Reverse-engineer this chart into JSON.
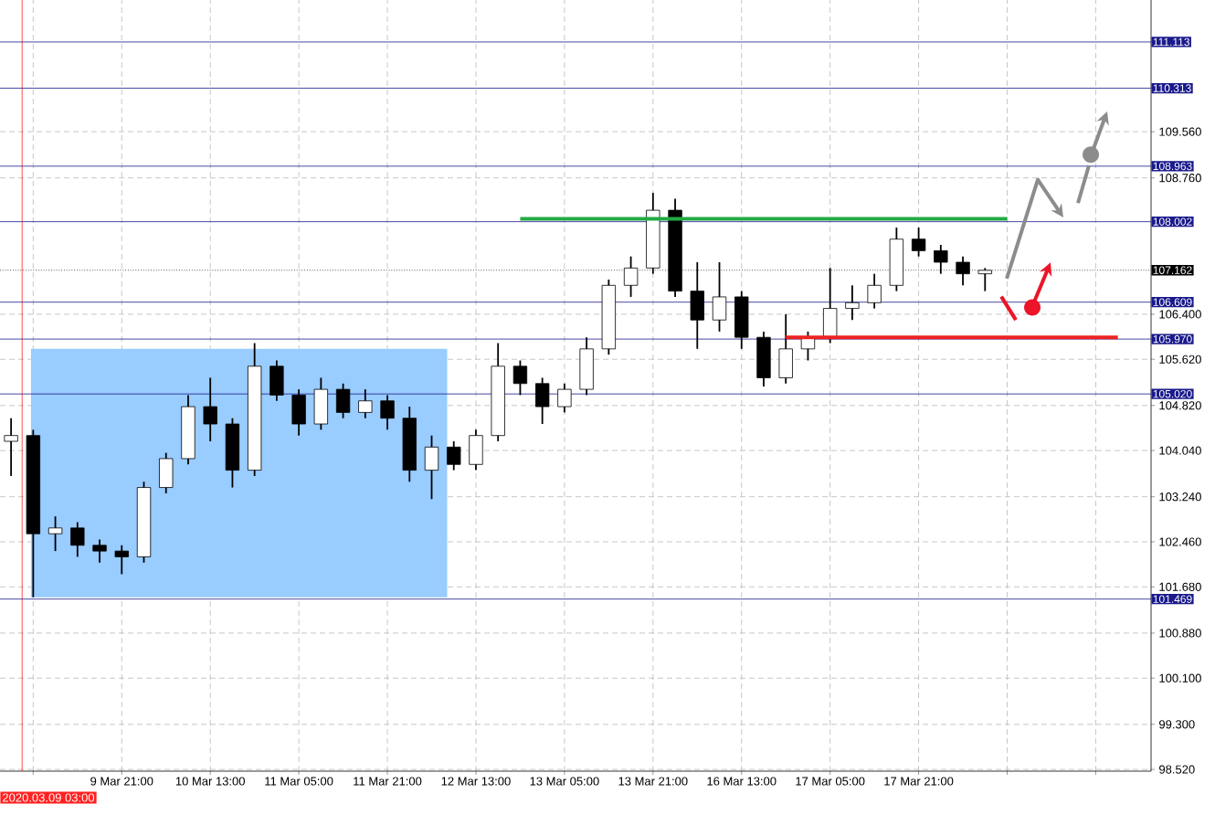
{
  "chart_data": {
    "type": "candlestick",
    "categories": [
      null,
      null,
      null,
      null,
      null,
      "9 Mar 21:00",
      null,
      null,
      null,
      "10 Mar 13:00",
      null,
      null,
      null,
      "11 Mar 05:00",
      null,
      null,
      null,
      "11 Mar 21:00",
      null,
      null,
      null,
      "12 Mar 13:00",
      null,
      null,
      null,
      "13 Mar 05:00",
      null,
      null,
      null,
      "13 Mar 21:00",
      null,
      null,
      null,
      "16 Mar 13:00",
      null,
      null,
      null,
      "17 Mar 05:00",
      null,
      null,
      null,
      "17 Mar 21:00",
      null,
      null,
      null,
      null,
      null,
      null,
      null,
      null,
      null,
      null
    ],
    "ohlc": [
      [
        104.2,
        104.6,
        103.6,
        104.3
      ],
      [
        104.3,
        104.4,
        101.5,
        102.6
      ],
      [
        102.6,
        102.9,
        102.3,
        102.7
      ],
      [
        102.7,
        102.8,
        102.2,
        102.4
      ],
      [
        102.4,
        102.5,
        102.1,
        102.3
      ],
      [
        102.3,
        102.4,
        101.9,
        102.2
      ],
      [
        102.2,
        103.5,
        102.1,
        103.4
      ],
      [
        103.4,
        104.0,
        103.3,
        103.9
      ],
      [
        103.9,
        105.0,
        103.8,
        104.8
      ],
      [
        104.8,
        105.3,
        104.2,
        104.5
      ],
      [
        104.5,
        104.6,
        103.4,
        103.7
      ],
      [
        103.7,
        105.9,
        103.6,
        105.5
      ],
      [
        105.5,
        105.6,
        104.9,
        105.0
      ],
      [
        105.0,
        105.1,
        104.3,
        104.5
      ],
      [
        104.5,
        105.3,
        104.4,
        105.1
      ],
      [
        105.1,
        105.2,
        104.6,
        104.7
      ],
      [
        104.7,
        105.1,
        104.6,
        104.9
      ],
      [
        104.9,
        105.0,
        104.4,
        104.6
      ],
      [
        104.6,
        104.8,
        103.5,
        103.7
      ],
      [
        103.7,
        104.3,
        103.2,
        104.1
      ],
      [
        104.1,
        104.2,
        103.7,
        103.8
      ],
      [
        103.8,
        104.4,
        103.7,
        104.3
      ],
      [
        104.3,
        105.9,
        104.2,
        105.5
      ],
      [
        105.5,
        105.6,
        105.0,
        105.2
      ],
      [
        105.2,
        105.3,
        104.5,
        104.8
      ],
      [
        104.8,
        105.2,
        104.7,
        105.1
      ],
      [
        105.1,
        106.0,
        105.0,
        105.8
      ],
      [
        105.8,
        107.0,
        105.7,
        106.9
      ],
      [
        106.9,
        107.4,
        106.7,
        107.2
      ],
      [
        107.2,
        108.5,
        107.1,
        108.2
      ],
      [
        108.2,
        108.4,
        106.7,
        106.8
      ],
      [
        106.8,
        107.3,
        105.8,
        106.3
      ],
      [
        106.3,
        107.3,
        106.1,
        106.7
      ],
      [
        106.7,
        106.8,
        105.8,
        106.0
      ],
      [
        106.0,
        106.1,
        105.15,
        105.3
      ],
      [
        105.3,
        106.4,
        105.2,
        105.8
      ],
      [
        105.8,
        106.1,
        105.6,
        106.0
      ],
      [
        106.0,
        107.2,
        105.9,
        106.5
      ],
      [
        106.5,
        106.9,
        106.3,
        106.6
      ],
      [
        106.6,
        107.1,
        106.5,
        106.9
      ],
      [
        106.9,
        107.9,
        106.8,
        107.7
      ],
      [
        107.7,
        107.9,
        107.4,
        107.5
      ],
      [
        107.5,
        107.6,
        107.1,
        107.3
      ],
      [
        107.3,
        107.4,
        106.9,
        107.1
      ],
      [
        107.1,
        107.2,
        106.8,
        107.16
      ],
      null,
      null,
      null,
      null,
      null,
      null,
      null
    ],
    "series": [
      {
        "type": "line",
        "color": "#22aa44",
        "values": [
          null,
          null,
          null,
          null,
          null,
          null,
          null,
          null,
          null,
          null,
          null,
          null,
          null,
          null,
          null,
          null,
          null,
          null,
          null,
          null,
          null,
          null,
          null,
          108.05,
          108.05,
          108.05,
          108.05,
          108.05,
          108.05,
          108.05,
          108.05,
          108.05,
          108.05,
          108.05,
          108.05,
          108.05,
          108.05,
          108.05,
          108.05,
          108.05,
          108.05,
          108.05,
          108.05,
          108.05,
          108.05,
          108.05,
          null,
          null,
          null,
          null,
          null,
          null
        ]
      },
      {
        "type": "line",
        "color": "#ee2222",
        "values": [
          null,
          null,
          null,
          null,
          null,
          null,
          null,
          null,
          null,
          null,
          null,
          null,
          null,
          null,
          null,
          null,
          null,
          null,
          null,
          null,
          null,
          null,
          null,
          null,
          null,
          null,
          null,
          null,
          null,
          null,
          null,
          null,
          null,
          null,
          null,
          106.0,
          106.0,
          106.0,
          106.0,
          106.0,
          106.0,
          106.0,
          106.0,
          106.0,
          106.0,
          106.0,
          106.0,
          106.0,
          106.0,
          106.0,
          106.0,
          null
        ]
      }
    ],
    "ylim": [
      98.49,
      111.84
    ],
    "yticks": [
      {
        "value": 98.52,
        "label": "98.520"
      },
      {
        "value": 99.3,
        "label": "99.300"
      },
      {
        "value": 100.1,
        "label": "100.100"
      },
      {
        "value": 100.88,
        "label": "100.880"
      },
      {
        "value": 101.68,
        "label": "101.680"
      },
      {
        "value": 102.46,
        "label": "102.460"
      },
      {
        "value": 103.24,
        "label": "103.240"
      },
      {
        "value": 104.04,
        "label": "104.040"
      },
      {
        "value": 104.82,
        "label": "104.820"
      },
      {
        "value": 105.62,
        "label": "105.620"
      },
      {
        "value": 106.4,
        "label": "106.400"
      },
      {
        "value": 108.76,
        "label": "108.760"
      },
      {
        "value": 109.56,
        "label": "109.560"
      }
    ],
    "bands": [
      {
        "axis": "y",
        "from": 101.5,
        "to": 105.8,
        "color": "#99ccff"
      }
    ],
    "ref_lines": [
      {
        "axis": "y",
        "value": 111.113,
        "label": "111.113",
        "color": "#1a1a8c"
      },
      {
        "axis": "y",
        "value": 110.313,
        "label": "110.313",
        "color": "#1a1a8c"
      },
      {
        "axis": "y",
        "value": 108.963,
        "label": "108.963",
        "color": "#1a1a8c"
      },
      {
        "axis": "y",
        "value": 108.002,
        "label": "108.002",
        "color": "#1a1a8c"
      },
      {
        "axis": "y",
        "value": 107.162,
        "label": "107.162",
        "color": "#000000",
        "line_style": "dotted"
      },
      {
        "axis": "y",
        "value": 106.609,
        "label": "106.609",
        "color": "#1a1a8c"
      },
      {
        "axis": "y",
        "value": 105.97,
        "label": "105.970",
        "color": "#1a1a8c"
      },
      {
        "axis": "y",
        "value": 105.02,
        "label": "105.020",
        "color": "#1a1a8c"
      },
      {
        "axis": "y",
        "value": 101.469,
        "label": "101.469",
        "color": "#1a1a8c"
      }
    ],
    "annotations": [
      "2020.03.09 03:00"
    ],
    "grid": true
  }
}
